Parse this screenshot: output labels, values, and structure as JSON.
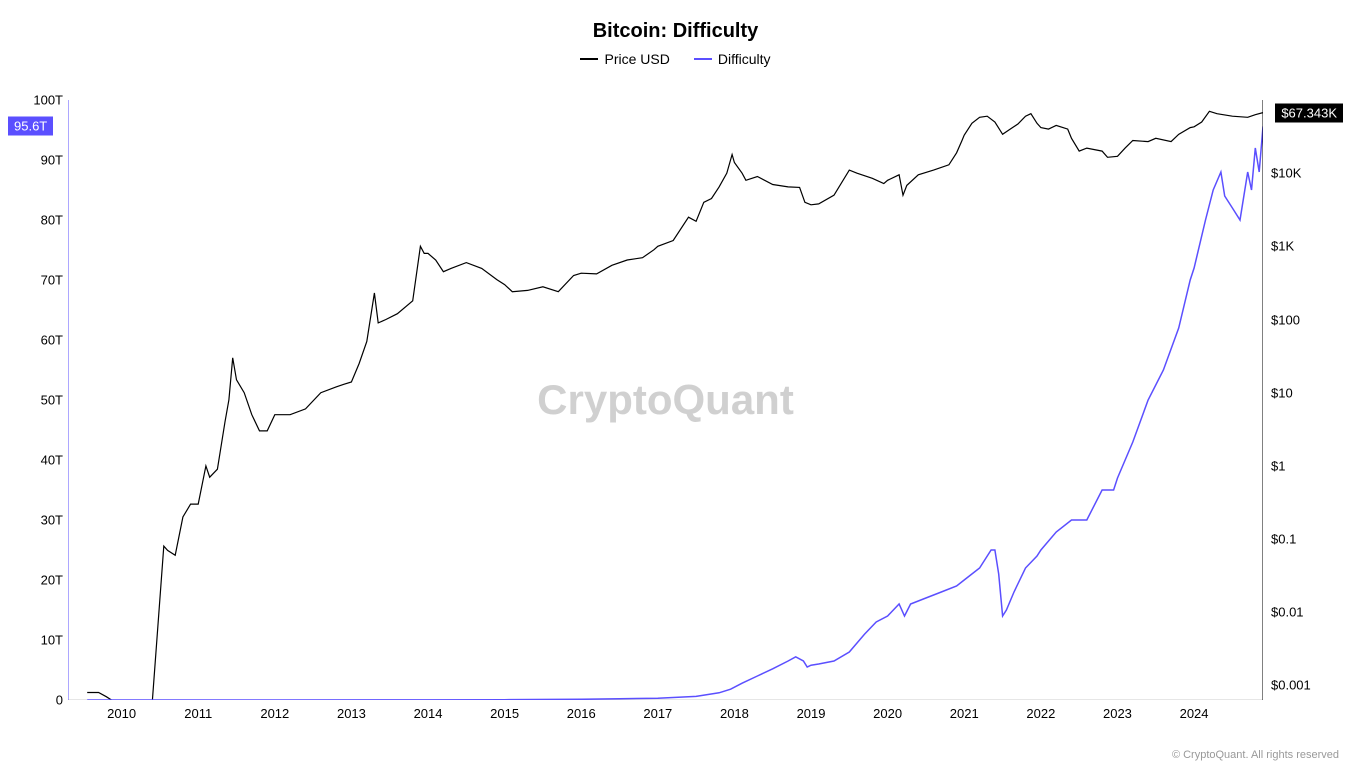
{
  "chart": {
    "type": "line-dual-axis",
    "title": "Bitcoin: Difficulty",
    "title_fontsize": 20,
    "title_color": "#000000",
    "background_color": "#ffffff",
    "watermark": "CryptoQuant",
    "watermark_color": "#d0d0d0",
    "copyright": "© CryptoQuant. All rights reserved",
    "legend": {
      "items": [
        {
          "label": "Price USD",
          "color": "#000000"
        },
        {
          "label": "Difficulty",
          "color": "#5b4fff"
        }
      ]
    },
    "x_axis": {
      "ticks": [
        "2010",
        "2011",
        "2012",
        "2013",
        "2014",
        "2015",
        "2016",
        "2017",
        "2018",
        "2019",
        "2020",
        "2021",
        "2022",
        "2023",
        "2024"
      ],
      "range_years": [
        2009.3,
        2024.9
      ]
    },
    "y_left": {
      "label_suffix": "T",
      "ticks": [
        0,
        10,
        20,
        30,
        40,
        50,
        60,
        70,
        80,
        90,
        100
      ],
      "tick_labels": [
        "0",
        "10T",
        "20T",
        "30T",
        "40T",
        "50T",
        "60T",
        "70T",
        "80T",
        "90T",
        "100T"
      ],
      "range": [
        0,
        100
      ],
      "current_badge": {
        "value": "95.6T",
        "bg": "#5b4fff"
      }
    },
    "y_right": {
      "scale": "log",
      "ticks": [
        0.001,
        0.01,
        0.1,
        1,
        10,
        100,
        1000,
        10000
      ],
      "tick_labels": [
        "$0.001",
        "$0.01",
        "$0.1",
        "$1",
        "$10",
        "$100",
        "$1K",
        "$10K"
      ],
      "range_log10": [
        -3.2,
        5.0
      ],
      "current_badge": {
        "value": "$67.343K",
        "bg": "#000000"
      }
    },
    "series": {
      "price_usd": {
        "color": "#000000",
        "line_width": 1.2,
        "axis": "right",
        "data": [
          [
            2009.55,
            0.0008
          ],
          [
            2009.7,
            0.0008
          ],
          [
            2009.8,
            0.0007
          ],
          [
            2009.9,
            0.0006
          ],
          [
            2010.0,
            0.0006
          ],
          [
            2010.2,
            0.0006
          ],
          [
            2010.4,
            0.0006
          ],
          [
            2010.55,
            0.08
          ],
          [
            2010.6,
            0.07
          ],
          [
            2010.7,
            0.06
          ],
          [
            2010.8,
            0.2
          ],
          [
            2010.9,
            0.3
          ],
          [
            2011.0,
            0.3
          ],
          [
            2011.1,
            1.0
          ],
          [
            2011.15,
            0.7
          ],
          [
            2011.25,
            0.9
          ],
          [
            2011.35,
            4
          ],
          [
            2011.4,
            8
          ],
          [
            2011.45,
            30
          ],
          [
            2011.5,
            15
          ],
          [
            2011.6,
            10
          ],
          [
            2011.7,
            5
          ],
          [
            2011.8,
            3
          ],
          [
            2011.9,
            3
          ],
          [
            2012.0,
            5
          ],
          [
            2012.2,
            5
          ],
          [
            2012.4,
            6
          ],
          [
            2012.6,
            10
          ],
          [
            2012.8,
            12
          ],
          [
            2012.9,
            13
          ],
          [
            2013.0,
            14
          ],
          [
            2013.1,
            25
          ],
          [
            2013.2,
            50
          ],
          [
            2013.3,
            230
          ],
          [
            2013.35,
            90
          ],
          [
            2013.45,
            100
          ],
          [
            2013.6,
            120
          ],
          [
            2013.8,
            180
          ],
          [
            2013.9,
            1000
          ],
          [
            2013.95,
            800
          ],
          [
            2014.0,
            800
          ],
          [
            2014.1,
            650
          ],
          [
            2014.2,
            450
          ],
          [
            2014.3,
            500
          ],
          [
            2014.5,
            600
          ],
          [
            2014.7,
            500
          ],
          [
            2014.9,
            350
          ],
          [
            2015.0,
            300
          ],
          [
            2015.1,
            240
          ],
          [
            2015.3,
            250
          ],
          [
            2015.5,
            280
          ],
          [
            2015.7,
            240
          ],
          [
            2015.9,
            400
          ],
          [
            2016.0,
            430
          ],
          [
            2016.2,
            420
          ],
          [
            2016.4,
            550
          ],
          [
            2016.6,
            650
          ],
          [
            2016.8,
            700
          ],
          [
            2016.95,
            900
          ],
          [
            2017.0,
            1000
          ],
          [
            2017.2,
            1200
          ],
          [
            2017.4,
            2500
          ],
          [
            2017.5,
            2200
          ],
          [
            2017.6,
            4000
          ],
          [
            2017.7,
            4500
          ],
          [
            2017.8,
            6500
          ],
          [
            2017.9,
            10000
          ],
          [
            2017.97,
            18000
          ],
          [
            2018.0,
            14000
          ],
          [
            2018.1,
            10000
          ],
          [
            2018.15,
            8000
          ],
          [
            2018.3,
            9000
          ],
          [
            2018.5,
            7000
          ],
          [
            2018.7,
            6500
          ],
          [
            2018.85,
            6400
          ],
          [
            2018.92,
            4000
          ],
          [
            2019.0,
            3700
          ],
          [
            2019.1,
            3800
          ],
          [
            2019.3,
            5000
          ],
          [
            2019.5,
            11000
          ],
          [
            2019.6,
            10000
          ],
          [
            2019.8,
            8500
          ],
          [
            2019.95,
            7200
          ],
          [
            2020.0,
            8000
          ],
          [
            2020.15,
            9500
          ],
          [
            2020.2,
            5000
          ],
          [
            2020.25,
            6800
          ],
          [
            2020.4,
            9500
          ],
          [
            2020.6,
            11000
          ],
          [
            2020.8,
            13000
          ],
          [
            2020.9,
            19000
          ],
          [
            2020.97,
            28000
          ],
          [
            2021.0,
            33000
          ],
          [
            2021.1,
            48000
          ],
          [
            2021.2,
            58000
          ],
          [
            2021.3,
            60000
          ],
          [
            2021.4,
            50000
          ],
          [
            2021.5,
            34000
          ],
          [
            2021.6,
            40000
          ],
          [
            2021.7,
            47000
          ],
          [
            2021.8,
            60000
          ],
          [
            2021.87,
            65000
          ],
          [
            2021.95,
            48000
          ],
          [
            2022.0,
            42000
          ],
          [
            2022.1,
            40000
          ],
          [
            2022.2,
            45000
          ],
          [
            2022.35,
            40000
          ],
          [
            2022.4,
            30000
          ],
          [
            2022.5,
            20000
          ],
          [
            2022.6,
            22000
          ],
          [
            2022.8,
            20000
          ],
          [
            2022.87,
            16500
          ],
          [
            2023.0,
            17000
          ],
          [
            2023.1,
            22000
          ],
          [
            2023.2,
            28000
          ],
          [
            2023.4,
            27000
          ],
          [
            2023.5,
            30000
          ],
          [
            2023.7,
            27000
          ],
          [
            2023.8,
            34000
          ],
          [
            2023.95,
            42000
          ],
          [
            2024.0,
            43000
          ],
          [
            2024.1,
            50000
          ],
          [
            2024.2,
            70000
          ],
          [
            2024.3,
            65000
          ],
          [
            2024.5,
            60000
          ],
          [
            2024.7,
            58000
          ],
          [
            2024.8,
            63000
          ],
          [
            2024.9,
            67343
          ]
        ]
      },
      "difficulty": {
        "color": "#5b4fff",
        "line_width": 1.5,
        "axis": "left",
        "data": [
          [
            2009.55,
            0
          ],
          [
            2012.0,
            0
          ],
          [
            2014.0,
            0.01
          ],
          [
            2015.0,
            0.05
          ],
          [
            2016.0,
            0.12
          ],
          [
            2016.5,
            0.2
          ],
          [
            2017.0,
            0.3
          ],
          [
            2017.5,
            0.6
          ],
          [
            2017.8,
            1.2
          ],
          [
            2017.95,
            1.8
          ],
          [
            2018.1,
            2.8
          ],
          [
            2018.3,
            4
          ],
          [
            2018.5,
            5.2
          ],
          [
            2018.7,
            6.5
          ],
          [
            2018.8,
            7.2
          ],
          [
            2018.9,
            6.5
          ],
          [
            2018.95,
            5.5
          ],
          [
            2019.0,
            5.8
          ],
          [
            2019.1,
            6
          ],
          [
            2019.3,
            6.5
          ],
          [
            2019.5,
            8
          ],
          [
            2019.7,
            11
          ],
          [
            2019.85,
            13
          ],
          [
            2020.0,
            14
          ],
          [
            2020.15,
            16
          ],
          [
            2020.22,
            14
          ],
          [
            2020.3,
            16
          ],
          [
            2020.5,
            17
          ],
          [
            2020.7,
            18
          ],
          [
            2020.9,
            19
          ],
          [
            2021.0,
            20
          ],
          [
            2021.2,
            22
          ],
          [
            2021.35,
            25
          ],
          [
            2021.4,
            25
          ],
          [
            2021.45,
            21
          ],
          [
            2021.5,
            14
          ],
          [
            2021.55,
            15
          ],
          [
            2021.65,
            18
          ],
          [
            2021.8,
            22
          ],
          [
            2021.95,
            24
          ],
          [
            2022.0,
            25
          ],
          [
            2022.2,
            28
          ],
          [
            2022.4,
            30
          ],
          [
            2022.6,
            30
          ],
          [
            2022.8,
            35
          ],
          [
            2022.95,
            35
          ],
          [
            2023.0,
            37
          ],
          [
            2023.2,
            43
          ],
          [
            2023.4,
            50
          ],
          [
            2023.6,
            55
          ],
          [
            2023.8,
            62
          ],
          [
            2023.95,
            70
          ],
          [
            2024.0,
            72
          ],
          [
            2024.15,
            80
          ],
          [
            2024.25,
            85
          ],
          [
            2024.35,
            88
          ],
          [
            2024.4,
            84
          ],
          [
            2024.5,
            82
          ],
          [
            2024.6,
            80
          ],
          [
            2024.7,
            88
          ],
          [
            2024.75,
            85
          ],
          [
            2024.8,
            92
          ],
          [
            2024.85,
            88
          ],
          [
            2024.9,
            95.6
          ]
        ]
      }
    }
  }
}
